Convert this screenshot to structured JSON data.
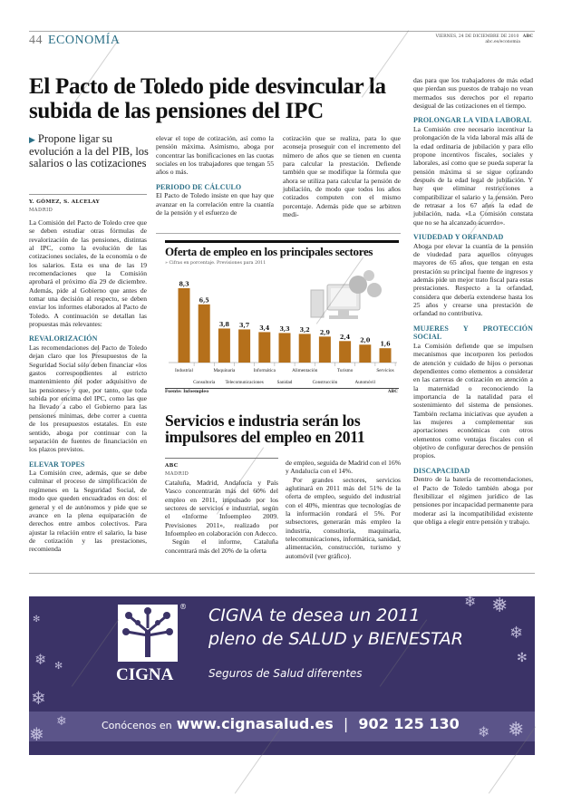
{
  "header": {
    "page_number": "44",
    "section": "ECONOMÍA",
    "date": "VIERNES, 24 DE DICIEMBRE DE 2010",
    "paper": "ABC",
    "web": "abc.es/economia"
  },
  "article1": {
    "headline": "El Pacto de Toledo pide desvincular la subida de las pensiones del IPC",
    "subhead": "Propone ligar su evolución a la del PIB, los salarios o las cotizaciones",
    "byline": "Y. GÓMEZ, S. ALCELAY",
    "location": "MADRID",
    "columns": [
      [
        {
          "type": "p",
          "text": "La Comisión del Pacto de Toledo cree que se deben estudiar otras fórmulas de revalorización de las pensiones, distintas al IPC, como la evolución de las cotizaciones sociales, de la economía o de los salarios. Esta es una de las 19 recomendaciones que la Comisión aprobará el próximo día 29 de diciembre. Además, pide al Gobierno que antes de tomar una decisión al respecto, se deben enviar los informes elaborados al Pacto de Toledo. A continuación se detallan las propuestas más relevantes:"
        },
        {
          "type": "h",
          "text": "REVALORIZACIÓN"
        },
        {
          "type": "p",
          "text": "Las recomendaciones del Pacto de Toledo dejan claro que los Presupuestos de la Seguridad Social sólo deben financiar «los gastos correspondientes al estricto mantenimiento del poder adquisitivo de las pensiones» y que, por tanto, que toda subida por encima del IPC, como las que ha llevado a cabo el Gobierno para las pensiones mínimas, debe correr a cuenta de los presupuestos estatales. En este sentido, aboga por continuar con la separación de fuentes de financiación en los plazos previstos."
        },
        {
          "type": "h",
          "text": "ELEVAR TOPES"
        },
        {
          "type": "p",
          "text": "La Comisión cree, además, que se debe culminar el proceso de simplificación de regímenes en la Seguridad Social, de modo que queden encuadrados en dos: el general y el de autónomos y pide que se avance en la plena equiparación de derechos entre ambos colectivos. Para ajustar la relación entre el salario, la base de cotización y las prestaciones, recomienda"
        }
      ],
      [
        {
          "type": "p",
          "text": "elevar el tope de cotización, así como la pensión máxima. Asimismo, aboga por concentrar las bonificaciones en las cuotas sociales en los trabajadores que tengan 55 años o más."
        },
        {
          "type": "h",
          "text": "PERIODO DE CÁLCULO"
        },
        {
          "type": "p",
          "text": "El Pacto de Toledo insiste en que hay que avanzar en la correlación entre la cuantía de la pensión y el esfuerzo de"
        }
      ],
      [
        {
          "type": "p",
          "text": "cotización que se realiza, para lo que aconseja proseguir con el incremento del número de años que se tienen en cuenta para calcular la prestación. Defiende también que se modifique la fórmula que ahora se utiliza para calcular la pensión de jubilación, de modo que todos los años cotizados computen con el mismo porcentaje. Además pide que se arbitren medi-"
        }
      ],
      [
        {
          "type": "p",
          "text": "das para que los trabajadores de más edad que pierdan sus puestos de trabajo no vean mermados sus derechos por el reparto desigual de las cotizaciones en el tiempo."
        },
        {
          "type": "h",
          "text": "PROLONGAR LA VIDA LABORAL"
        },
        {
          "type": "p",
          "text": "La Comisión cree necesario incentivar la prolongación de la vida laboral más allá de la edad ordinaria de jubilación y para ello propone incentivos fiscales, sociales y laborales, así como que se pueda superar la pensión máxima si se sigue cotizando después de la edad legal de jubilación. Y hay que eliminar restricciones a compatibilizar el salario y la pensión. Pero de retrasar a los 67 años la edad de jubilación, nada. «La Comisión constata que no se ha alcanzado acuerdo»."
        },
        {
          "type": "h",
          "text": "VIUDEDAD Y ORFANDAD"
        },
        {
          "type": "p",
          "text": "Aboga por elevar la cuantía de la pensión de viudedad para aquellos cónyuges mayores de 65 años, que tengan en esta prestación su principal fuente de ingresos y además pide un mejor trato fiscal para estas prestaciones. Respecto a la orfandad, considera que debería extenderse hasta los 25 años y crearse una prestación de orfandad no contributiva."
        },
        {
          "type": "h",
          "text": "MUJERES Y PROTECCIÓN SOCIAL"
        },
        {
          "type": "p",
          "text": "La Comisión defiende que se impulsen mecanismos que incorporen los periodos de atención y cuidado de hijos o personas dependientes como elementos a considerar en las carreras de cotización en atención a la maternidad o reconociendo la importancia de la natalidad para el sostenimiento del sistema de pensiones. También reclama iniciativas que ayuden a las mujeres a complementar sus aportaciones económicas con otros elementos como ventajas fiscales con el objetivo de configurar derechos de pensión propios."
        },
        {
          "type": "h",
          "text": "DISCAPACIDAD"
        },
        {
          "type": "p",
          "text": "Dentro de la batería de recomendaciones, el Pacto de Toledo también aboga por flexibilizar el régimen jurídico de las pensiones por incapacidad permanente para moderar así la incompatibilidad existente que obliga a elegir entre pensión y trabajo."
        }
      ]
    ]
  },
  "chart_data": {
    "type": "bar",
    "title": "Oferta de empleo en los principales sectores",
    "subtitle": "» Cifras en porcentaje. Previsiones para 2011",
    "categories": [
      "Industrial",
      "Consultoría",
      "Maquinaria",
      "Telecomunicaciones",
      "Informática",
      "Sanidad",
      "Alimentación",
      "Construcción",
      "Turismo",
      "Automóvil",
      "Servicios"
    ],
    "values": [
      8.3,
      6.5,
      3.8,
      3.7,
      3.4,
      3.3,
      3.2,
      2.9,
      2.4,
      2.0,
      1.6
    ],
    "value_labels": [
      "8,3",
      "6,5",
      "3,8",
      "3,7",
      "3,4",
      "3,3",
      "3,2",
      "2,9",
      "2,4",
      "2,0",
      "1,6"
    ],
    "ylim": [
      0,
      9
    ],
    "bar_color": "#b5701b",
    "grid": false,
    "source": "Fuente: Infoempleo",
    "credit": "ABC"
  },
  "article2": {
    "headline": "Servicios e industria serán los impulsores del empleo en 2011",
    "byline": "ABC",
    "location": "MADRID",
    "col1": [
      "Cataluña, Madrid, Andalucía y País Vasco concentrarán más del 60% del empleo en 2011, impulsado por los sectores de servicios e industrial, según el «Informe Infoempleo 2009. Previsiones 2011», realizado por Infoempleo en colaboración con Adecco.",
      "Según el informe, Cataluña concentrará más del 20% de la oferta"
    ],
    "col2": [
      "de empleo, seguida de Madrid con el 16% y Andalucía con el 14%.",
      "Por grandes sectores, servicios aglutinará en 2011 más del 51% de la oferta de empleo, seguido del industrial con el 40%, mientras que tecnologías de la información rondará el 5%. Por subsectores, generarán más empleo la industria, consultoría, maquinaria, telecomunicaciones, informática, sanidad, alimentación, construcción, turismo y automóvil (ver gráfico)."
    ]
  },
  "ad": {
    "brand": "CIGNA",
    "registered": "®",
    "line1": "CIGNA te desea un 2011",
    "line2": "pleno de SALUD y BIENESTAR",
    "tagline": "Seguros de Salud diferentes",
    "cta_prefix": "Conócenos en",
    "url": "www.cignasalud.es",
    "separator": "|",
    "phone": "902 125 130",
    "bg_color": "#3b3367"
  },
  "watermark": "ABC"
}
